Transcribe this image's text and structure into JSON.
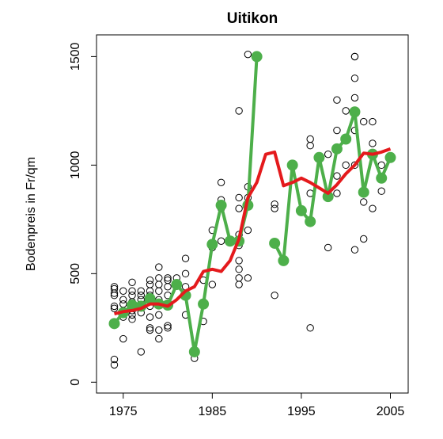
{
  "chart_data": {
    "type": "scatter",
    "title": "Uitikon",
    "ylabel": "Bodenpreis in Fr/qm",
    "xlim": [
      1972,
      2007
    ],
    "ylim": [
      -50,
      1600
    ],
    "xticks": [
      1975,
      1985,
      1995,
      2005
    ],
    "yticks": [
      0,
      500,
      1000,
      1500
    ],
    "series": [
      {
        "type": "scatter",
        "color": "#000000",
        "x": [
          1974,
          1974,
          1974,
          1974,
          1974,
          1974,
          1974,
          1974,
          1975,
          1975,
          1975,
          1975,
          1975,
          1975,
          1976,
          1976,
          1976,
          1976,
          1976,
          1976,
          1976,
          1977,
          1977,
          1977,
          1977,
          1977,
          1977,
          1978,
          1978,
          1978,
          1978,
          1978,
          1978,
          1978,
          1978,
          1978,
          1979,
          1979,
          1979,
          1979,
          1979,
          1979,
          1979,
          1979,
          1980,
          1980,
          1980,
          1980,
          1980,
          1980,
          1981,
          1981,
          1982,
          1982,
          1982,
          1982,
          1983,
          1983,
          1984,
          1984,
          1984,
          1985,
          1985,
          1985,
          1986,
          1986,
          1986,
          1986,
          1987,
          1988,
          1988,
          1988,
          1988,
          1988,
          1988,
          1988,
          1988,
          1988,
          1989,
          1989,
          1989,
          1989,
          1989,
          1989,
          1992,
          1992,
          1992,
          1993,
          1995,
          1996,
          1996,
          1996,
          1996,
          1997,
          1998,
          1998,
          1998,
          1999,
          1999,
          1999,
          1999,
          2000,
          2000,
          2001,
          2001,
          2001,
          2001,
          2001,
          2001,
          2001,
          2001,
          2002,
          2002,
          2002,
          2003,
          2003,
          2003,
          2004,
          2004,
          2005
        ],
        "values": [
          80,
          105,
          340,
          350,
          400,
          410,
          440,
          430,
          200,
          300,
          330,
          360,
          380,
          420,
          290,
          310,
          330,
          370,
          400,
          420,
          460,
          140,
          320,
          350,
          380,
          400,
          420,
          240,
          250,
          300,
          350,
          380,
          400,
          420,
          450,
          470,
          200,
          240,
          310,
          380,
          420,
          450,
          480,
          530,
          250,
          260,
          400,
          440,
          470,
          480,
          450,
          480,
          310,
          440,
          500,
          570,
          110,
          140,
          280,
          360,
          470,
          450,
          620,
          700,
          650,
          800,
          840,
          920,
          650,
          450,
          480,
          520,
          560,
          630,
          680,
          800,
          850,
          1250,
          480,
          700,
          820,
          850,
          900,
          1510,
          400,
          800,
          820,
          560,
          790,
          250,
          870,
          1090,
          1120,
          1040,
          620,
          860,
          1050,
          870,
          950,
          1160,
          1300,
          1000,
          1250,
          610,
          1000,
          1160,
          1250,
          1310,
          1400,
          1500,
          1500,
          660,
          830,
          1200,
          800,
          1100,
          1200,
          880,
          1000,
          1030
        ]
      },
      {
        "type": "line",
        "color": "#4daf4a",
        "markers": true,
        "x": [
          1974,
          1975,
          1976,
          1977,
          1978,
          1979,
          1980,
          1981,
          1982,
          1983,
          1984,
          1985,
          1986,
          1987,
          1988,
          1989,
          1990,
          1991,
          1992,
          1993,
          1994,
          1995,
          1996,
          1997,
          1998,
          1999,
          2000,
          2001,
          2002,
          2003,
          2004,
          2005
        ],
        "values": [
          270,
          320,
          355,
          350,
          385,
          360,
          355,
          450,
          400,
          140,
          360,
          635,
          815,
          650,
          650,
          815,
          1500,
          null,
          640,
          560,
          1000,
          790,
          740,
          1035,
          855,
          1075,
          1120,
          1245,
          875,
          1050,
          940,
          1035
        ]
      },
      {
        "type": "line",
        "color": "#e41a1c",
        "x": [
          1974,
          1975,
          1976,
          1977,
          1978,
          1979,
          1980,
          1981,
          1982,
          1983,
          1984,
          1985,
          1986,
          1987,
          1988,
          1989,
          1990,
          1991,
          1992,
          1993,
          1994,
          1995,
          1996,
          1997,
          1998,
          1999,
          2000,
          2001,
          2002,
          2003,
          2004,
          2005
        ],
        "values": [
          315,
          325,
          330,
          340,
          360,
          360,
          350,
          380,
          420,
          440,
          510,
          520,
          510,
          560,
          660,
          850,
          920,
          1050,
          1060,
          905,
          920,
          940,
          920,
          895,
          870,
          910,
          960,
          1000,
          1055,
          1050,
          1060,
          1075
        ]
      }
    ]
  }
}
